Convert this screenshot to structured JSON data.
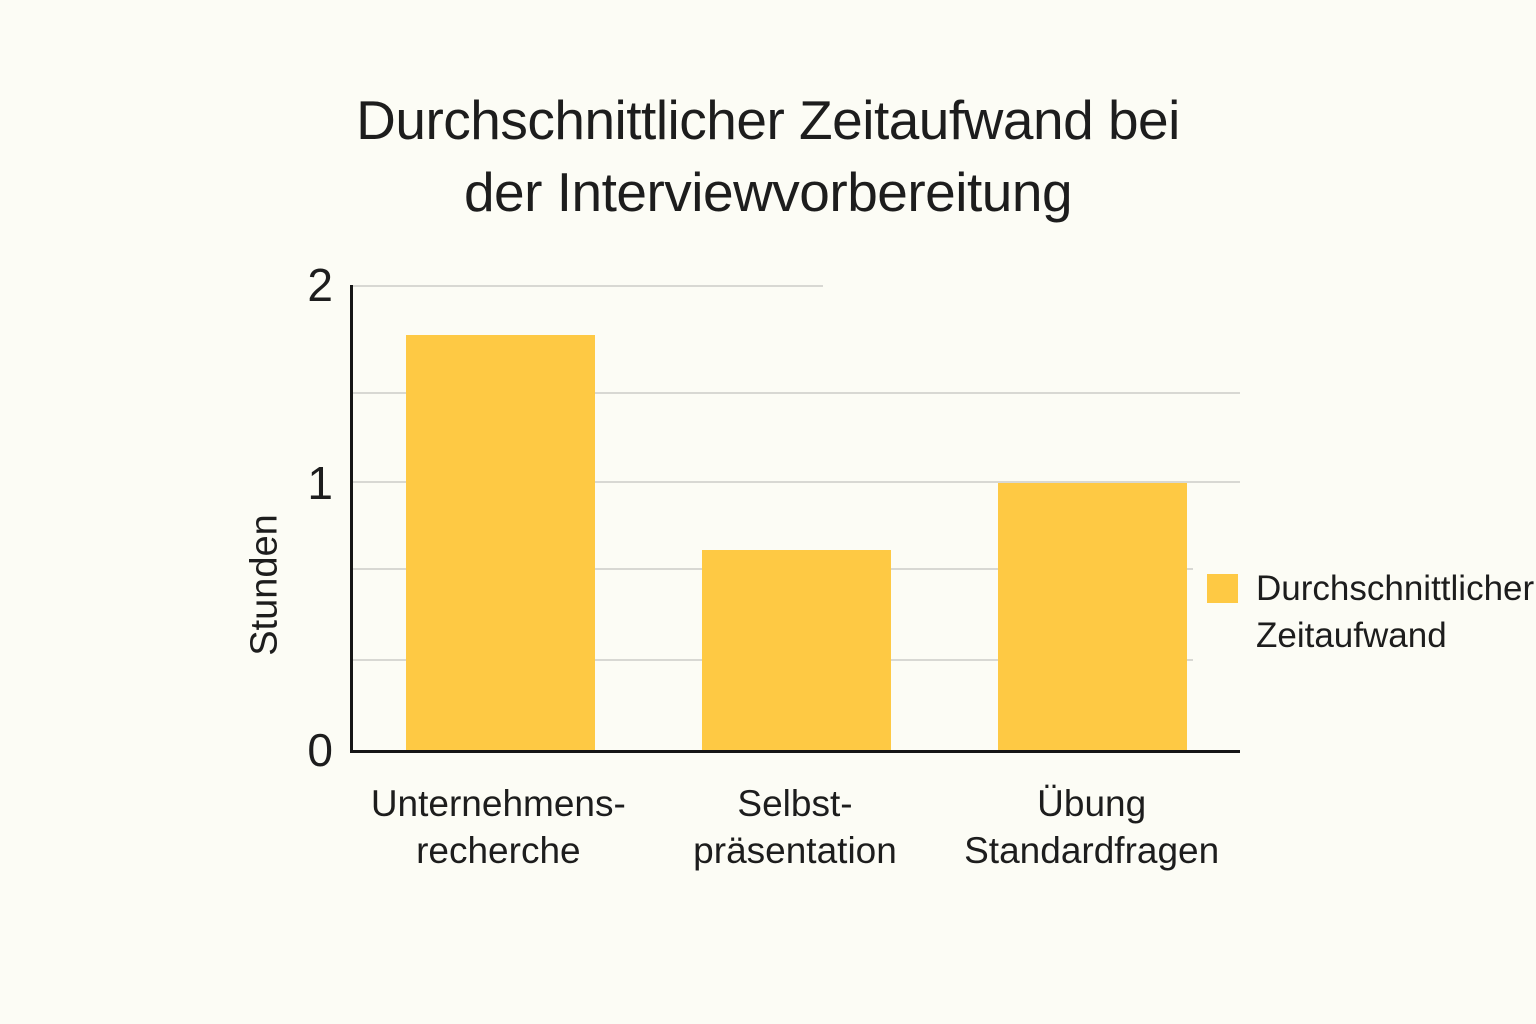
{
  "chart_data": {
    "type": "bar",
    "title": "Durchschnittlicher Zeitaufwand bei der Interviewvorbereitung",
    "title_lines": [
      "Durchschnittlicher Zeitaufwand bei",
      "der Interviewvorbereitung"
    ],
    "ylabel": "Stunden",
    "xlabel": "",
    "categories": [
      "Unternehmensrecherche",
      "Selbstpräsentation",
      "Übung Standardfragen"
    ],
    "category_lines": [
      [
        "Unternehmens-",
        "recherche"
      ],
      [
        "Selbst-",
        "präsentation"
      ],
      [
        "Übung",
        "Standardfragen"
      ]
    ],
    "series": [
      {
        "name": "Durchschnittlicher Zeitaufwand",
        "values": [
          1.75,
          0.75,
          1
        ]
      }
    ],
    "values": [
      1.75,
      0.75,
      1
    ],
    "yticks": [
      0,
      1,
      2
    ],
    "ylim": [
      0,
      2
    ],
    "grid": "horizontal",
    "legend": {
      "label": "Durchschnittlicher Zeitaufwand",
      "lines": [
        "Durchschnittlicher",
        "Zeitaufwand"
      ],
      "position": "top-right"
    },
    "colors": {
      "bar": "#FEC944",
      "background": "#FCFCF5",
      "text": "#1D1D1D",
      "gridline": "#D8D8D3",
      "axis": "#161616"
    }
  }
}
